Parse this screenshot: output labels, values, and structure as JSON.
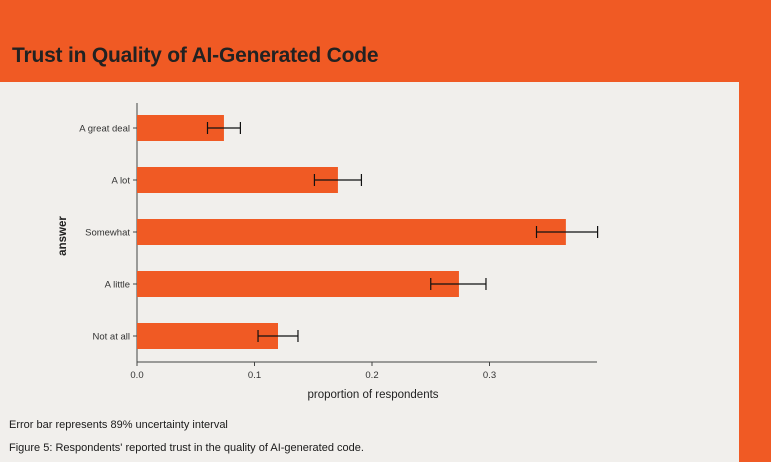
{
  "header": {
    "title": "Trust in Quality of AI-Generated Code"
  },
  "colors": {
    "accent": "#f05a24",
    "bar": "#f05a24",
    "panel": "#f1efec",
    "text": "#222222"
  },
  "chart_data": {
    "type": "bar",
    "orientation": "horizontal",
    "categories": [
      "A great deal",
      "A lot",
      "Somewhat",
      "A little",
      "Not at all"
    ],
    "values": [
      0.074,
      0.171,
      0.365,
      0.274,
      0.12
    ],
    "error_low": [
      0.06,
      0.151,
      0.34,
      0.25,
      0.103
    ],
    "error_high": [
      0.088,
      0.191,
      0.392,
      0.297,
      0.137
    ],
    "xlabel": "proportion of respondents",
    "ylabel": "answer",
    "xlim": [
      0.0,
      0.39
    ],
    "xticks": [
      "0.0",
      "0.1",
      "0.2",
      "0.3"
    ],
    "grid": false
  },
  "notes": {
    "error_bar": "Error bar represents 89% uncertainty interval",
    "caption": "Figure 5: Respondents' reported trust in the quality of AI-generated code."
  }
}
